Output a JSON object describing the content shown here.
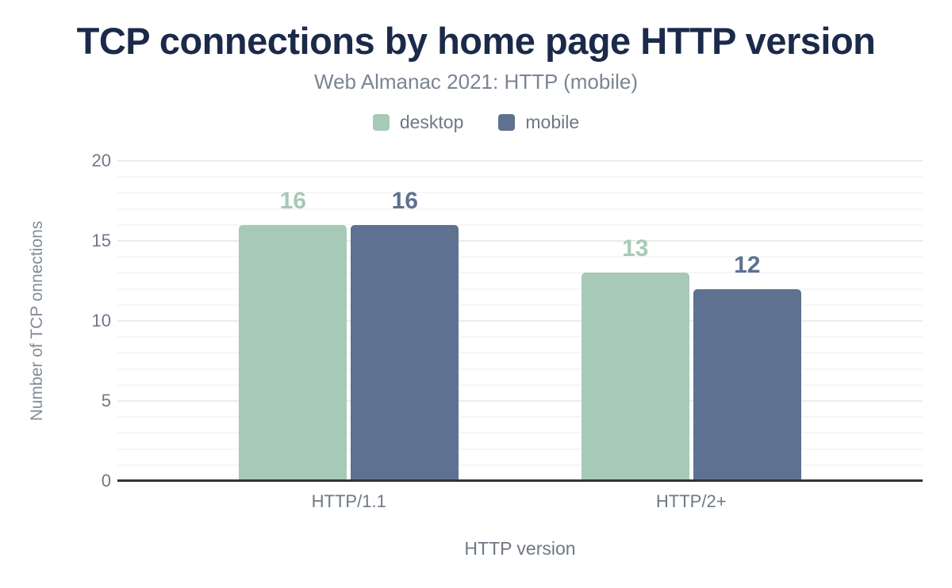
{
  "chart_data": {
    "type": "bar",
    "title": "TCP connections by home page HTTP version",
    "subtitle": "Web Almanac 2021: HTTP (mobile)",
    "categories": [
      "HTTP/1.1",
      "HTTP/2+"
    ],
    "series": [
      {
        "name": "desktop",
        "color": "#a7c9b8",
        "values": [
          16,
          13
        ]
      },
      {
        "name": "mobile",
        "color": "#5e7190",
        "values": [
          16,
          12
        ]
      }
    ],
    "data_labels": [
      {
        "series": "desktop",
        "values": [
          "16",
          "13"
        ]
      },
      {
        "series": "mobile",
        "values": [
          "16",
          "12"
        ]
      }
    ],
    "xlabel": "HTTP version",
    "ylabel": "Number of TCP onnections",
    "ylim": [
      0,
      20
    ],
    "yticks": [
      "0",
      "5",
      "10",
      "15",
      "20"
    ],
    "minor_grid_step": 1,
    "grid": true,
    "legend_position": "top"
  },
  "colors": {
    "title": "#1b2a4a",
    "subtitle": "#7b8494",
    "axis_text": "#6f7884",
    "ylabel_text": "#838b96",
    "axis_line": "#30333a",
    "grid_major": "#ebebeb",
    "grid_minor": "#f6f6f6",
    "desktop": "#a7c9b8",
    "mobile": "#5e7190"
  }
}
